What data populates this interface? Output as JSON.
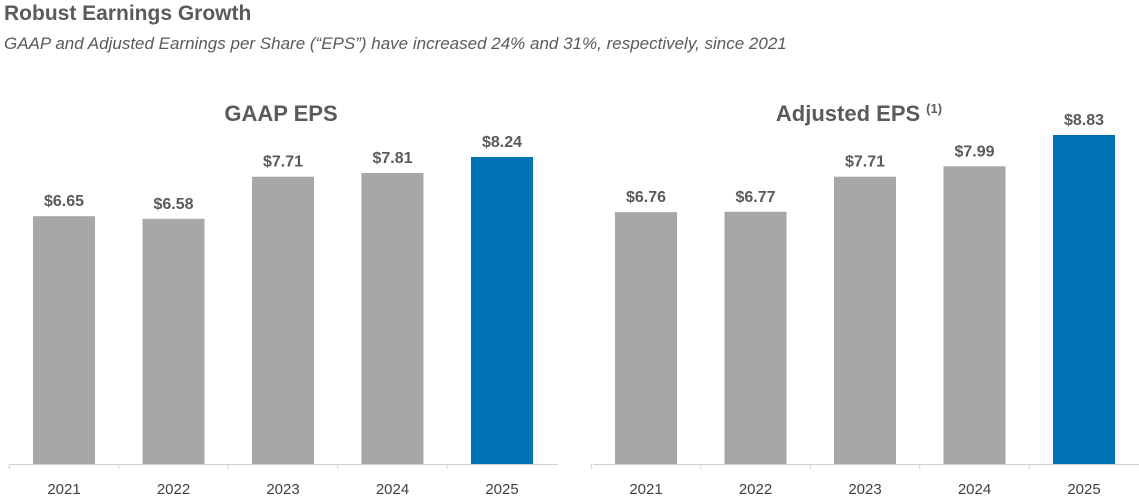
{
  "header": {
    "title": "Robust Earnings Growth",
    "subtitle": "GAAP and Adjusted Earnings per Share (“EPS”) have increased 24% and 31%, respectively, since 2021"
  },
  "colors": {
    "bar": "#a6a7a9",
    "highlight": "#0073b7",
    "axis": "#d0d0d0"
  },
  "chart_data": [
    {
      "type": "bar",
      "title": "GAAP EPS",
      "title_superscript": "",
      "categories": [
        "2021",
        "2022",
        "2023",
        "2024",
        "2025"
      ],
      "values": [
        6.65,
        6.58,
        7.71,
        7.81,
        8.24
      ],
      "labels": [
        "$6.65",
        "$6.58",
        "$7.71",
        "$7.81",
        "$8.24"
      ],
      "highlight_index": 4,
      "ylim": [
        0,
        8.83
      ]
    },
    {
      "type": "bar",
      "title": "Adjusted EPS",
      "title_superscript": "(1)",
      "categories": [
        "2021",
        "2022",
        "2023",
        "2024",
        "2025"
      ],
      "values": [
        6.76,
        6.77,
        7.71,
        7.99,
        8.83
      ],
      "labels": [
        "$6.76",
        "$6.77",
        "$7.71",
        "$7.99",
        "$8.83"
      ],
      "highlight_index": 4,
      "ylim": [
        0,
        8.83
      ]
    }
  ]
}
